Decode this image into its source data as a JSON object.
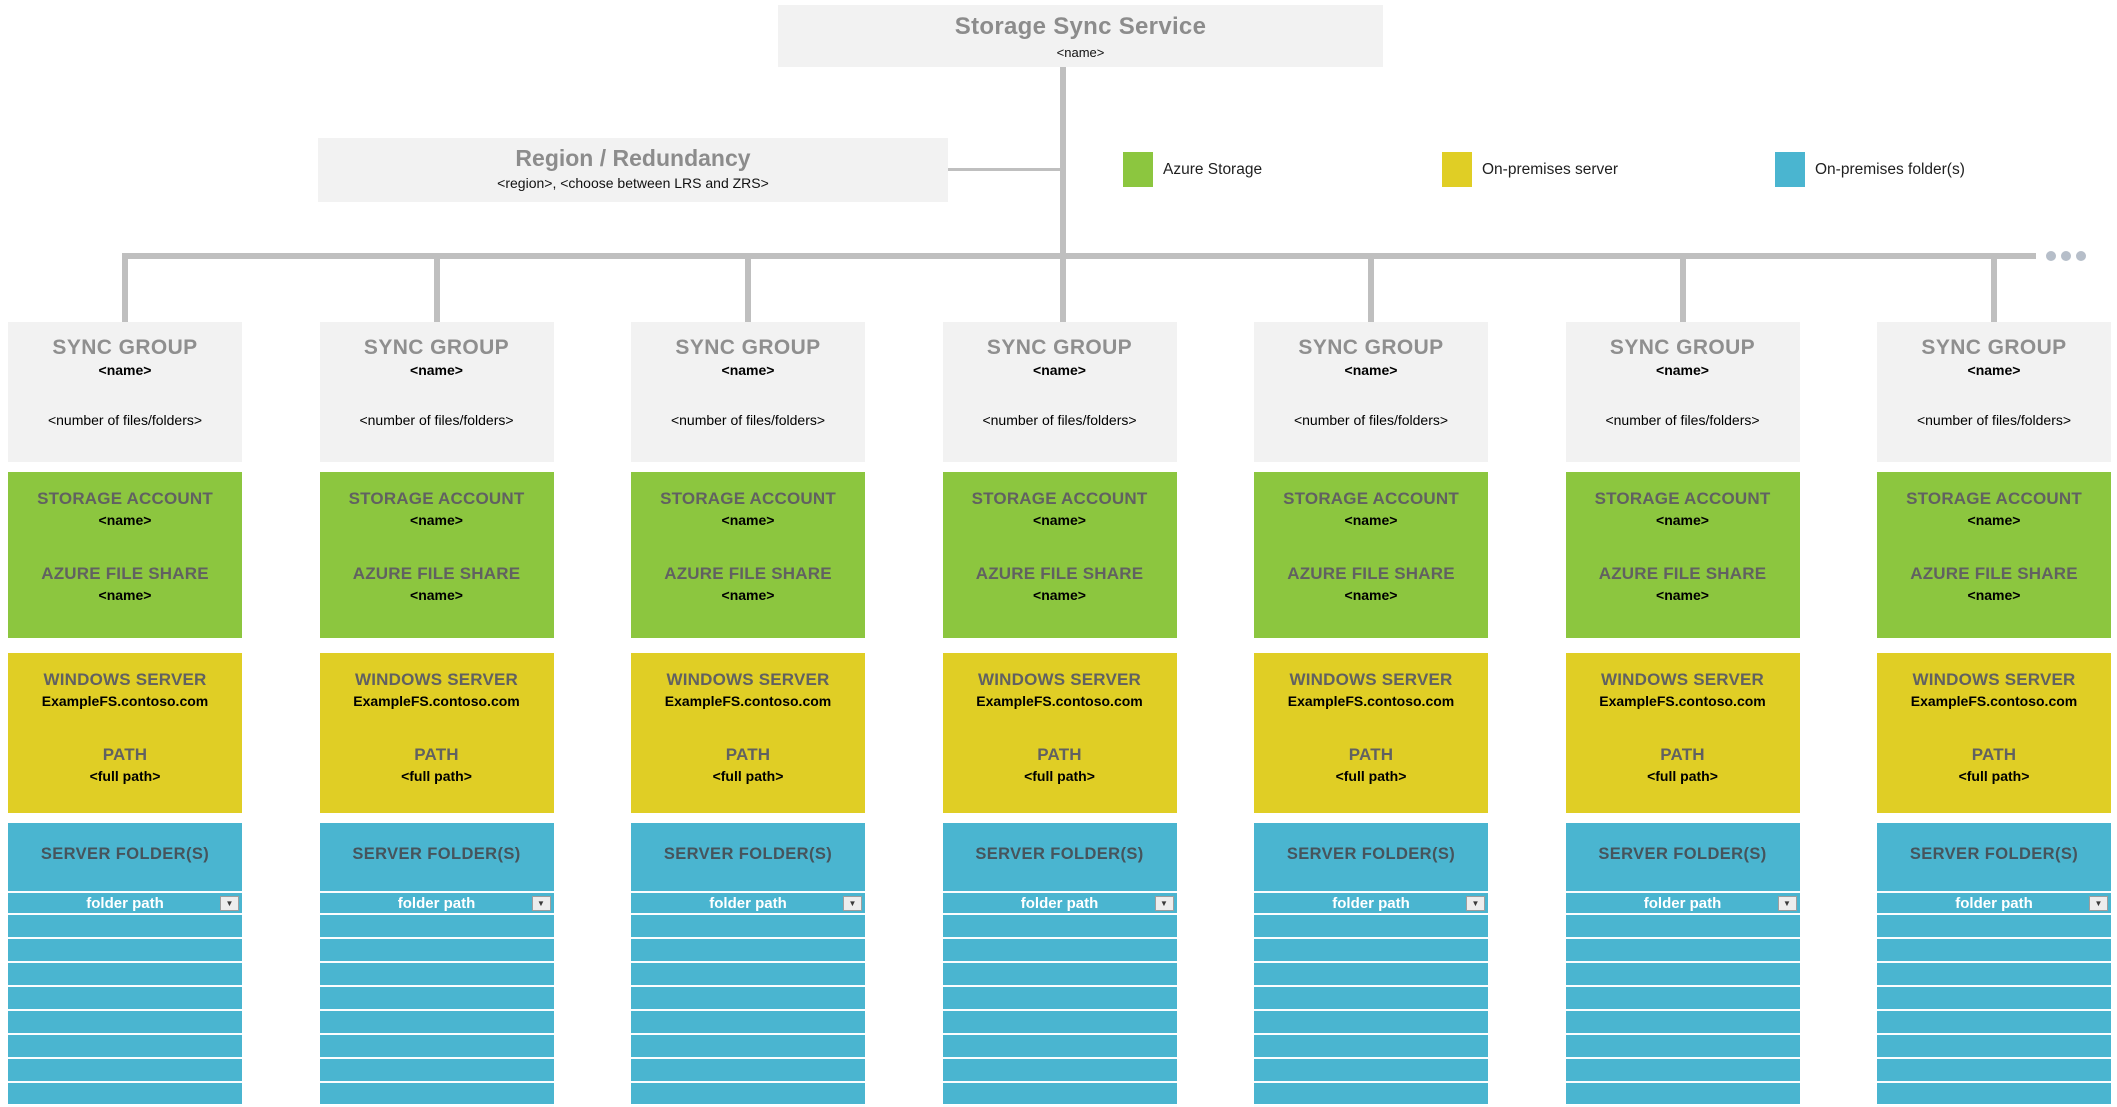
{
  "service_box": {
    "title": "Storage Sync Service",
    "name": "<name>"
  },
  "region_box": {
    "title": "Region / Redundancy",
    "details": "<region>, <choose between LRS and ZRS>"
  },
  "legend": {
    "items": [
      {
        "label": "Azure Storage",
        "color": "#8CC63F"
      },
      {
        "label": "On-premises server",
        "color": "#E0CE25"
      },
      {
        "label": "On-premises folder(s)",
        "color": "#4AB5D0"
      }
    ]
  },
  "more_indicator": "...",
  "palette": {
    "box_gray": "#F2F2F2",
    "line_gray": "#BFBFBF",
    "heading_gray": "#8C8C8C",
    "azure_green": "#8CC63F",
    "server_yellow": "#E0CE25",
    "folder_blue": "#4AB5D0"
  },
  "sync_groups": [
    {
      "header": {
        "title": "SYNC GROUP",
        "name": "<name>",
        "count": "<number of files/folders>"
      },
      "storage_account": {
        "title": "STORAGE ACCOUNT",
        "name": "<name>",
        "share_title": "AZURE FILE SHARE",
        "share_name": "<name>"
      },
      "windows_server": {
        "title": "WINDOWS SERVER",
        "server_name": "ExampleFS.contoso.com",
        "path_title": "PATH",
        "path_value": "<full path>"
      },
      "server_folders": {
        "title": "SERVER FOLDER(S)",
        "selected_value": "folder path",
        "dropdown_icon": "▼",
        "empty_row_count": 8
      }
    },
    {
      "header": {
        "title": "SYNC GROUP",
        "name": "<name>",
        "count": "<number of files/folders>"
      },
      "storage_account": {
        "title": "STORAGE ACCOUNT",
        "name": "<name>",
        "share_title": "AZURE FILE SHARE",
        "share_name": "<name>"
      },
      "windows_server": {
        "title": "WINDOWS SERVER",
        "server_name": "ExampleFS.contoso.com",
        "path_title": "PATH",
        "path_value": "<full path>"
      },
      "server_folders": {
        "title": "SERVER FOLDER(S)",
        "selected_value": "folder path",
        "dropdown_icon": "▼",
        "empty_row_count": 8
      }
    },
    {
      "header": {
        "title": "SYNC GROUP",
        "name": "<name>",
        "count": "<number of files/folders>"
      },
      "storage_account": {
        "title": "STORAGE ACCOUNT",
        "name": "<name>",
        "share_title": "AZURE FILE SHARE",
        "share_name": "<name>"
      },
      "windows_server": {
        "title": "WINDOWS SERVER",
        "server_name": "ExampleFS.contoso.com",
        "path_title": "PATH",
        "path_value": "<full path>"
      },
      "server_folders": {
        "title": "SERVER FOLDER(S)",
        "selected_value": "folder path",
        "dropdown_icon": "▼",
        "empty_row_count": 8
      }
    },
    {
      "header": {
        "title": "SYNC GROUP",
        "name": "<name>",
        "count": "<number of files/folders>"
      },
      "storage_account": {
        "title": "STORAGE ACCOUNT",
        "name": "<name>",
        "share_title": "AZURE FILE SHARE",
        "share_name": "<name>"
      },
      "windows_server": {
        "title": "WINDOWS SERVER",
        "server_name": "ExampleFS.contoso.com",
        "path_title": "PATH",
        "path_value": "<full path>"
      },
      "server_folders": {
        "title": "SERVER FOLDER(S)",
        "selected_value": "folder path",
        "dropdown_icon": "▼",
        "empty_row_count": 8
      }
    },
    {
      "header": {
        "title": "SYNC GROUP",
        "name": "<name>",
        "count": "<number of files/folders>"
      },
      "storage_account": {
        "title": "STORAGE ACCOUNT",
        "name": "<name>",
        "share_title": "AZURE FILE SHARE",
        "share_name": "<name>"
      },
      "windows_server": {
        "title": "WINDOWS SERVER",
        "server_name": "ExampleFS.contoso.com",
        "path_title": "PATH",
        "path_value": "<full path>"
      },
      "server_folders": {
        "title": "SERVER FOLDER(S)",
        "selected_value": "folder path",
        "dropdown_icon": "▼",
        "empty_row_count": 8
      }
    },
    {
      "header": {
        "title": "SYNC GROUP",
        "name": "<name>",
        "count": "<number of files/folders>"
      },
      "storage_account": {
        "title": "STORAGE ACCOUNT",
        "name": "<name>",
        "share_title": "AZURE FILE SHARE",
        "share_name": "<name>"
      },
      "windows_server": {
        "title": "WINDOWS SERVER",
        "server_name": "ExampleFS.contoso.com",
        "path_title": "PATH",
        "path_value": "<full path>"
      },
      "server_folders": {
        "title": "SERVER FOLDER(S)",
        "selected_value": "folder path",
        "dropdown_icon": "▼",
        "empty_row_count": 8
      }
    },
    {
      "header": {
        "title": "SYNC GROUP",
        "name": "<name>",
        "count": "<number of files/folders>"
      },
      "storage_account": {
        "title": "STORAGE ACCOUNT",
        "name": "<name>",
        "share_title": "AZURE FILE SHARE",
        "share_name": "<name>"
      },
      "windows_server": {
        "title": "WINDOWS SERVER",
        "server_name": "ExampleFS.contoso.com",
        "path_title": "PATH",
        "path_value": "<full path>"
      },
      "server_folders": {
        "title": "SERVER FOLDER(S)",
        "selected_value": "folder path",
        "dropdown_icon": "▼",
        "empty_row_count": 8
      }
    }
  ]
}
